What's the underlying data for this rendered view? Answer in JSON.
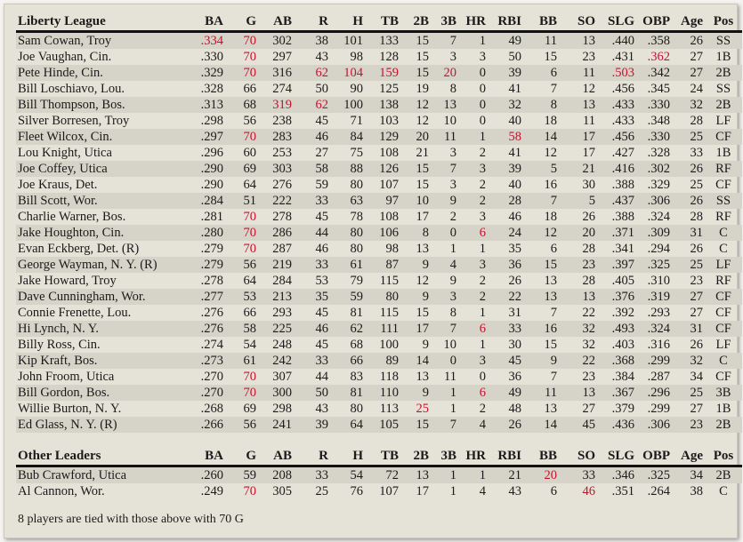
{
  "columns": [
    "BA",
    "G",
    "AB",
    "R",
    "H",
    "TB",
    "2B",
    "3B",
    "HR",
    "RBI",
    "BB",
    "SO",
    "SLG",
    "OBP",
    "Age",
    "Pos"
  ],
  "highlight_color": "#c8102e",
  "liberty_league": {
    "title": "Liberty League",
    "rows": [
      {
        "cells": [
          "Sam Cowan, Troy",
          ".334",
          "70",
          "302",
          "38",
          "101",
          "133",
          "15",
          "7",
          "1",
          "49",
          "11",
          "13",
          ".440",
          ".358",
          "26",
          "SS"
        ],
        "red": [
          1,
          2
        ]
      },
      {
        "cells": [
          "Joe Vaughan, Cin.",
          ".330",
          "70",
          "297",
          "43",
          "98",
          "128",
          "15",
          "3",
          "3",
          "50",
          "15",
          "23",
          ".431",
          ".362",
          "27",
          "1B"
        ],
        "red": [
          2,
          14
        ]
      },
      {
        "cells": [
          "Pete Hinde, Cin.",
          ".329",
          "70",
          "316",
          "62",
          "104",
          "159",
          "15",
          "20",
          "0",
          "39",
          "6",
          "11",
          ".503",
          ".342",
          "27",
          "2B"
        ],
        "red": [
          2,
          4,
          5,
          6,
          8,
          13
        ]
      },
      {
        "cells": [
          "Bill Loschiavo, Lou.",
          ".328",
          "66",
          "274",
          "50",
          "90",
          "125",
          "19",
          "8",
          "0",
          "41",
          "7",
          "12",
          ".456",
          ".345",
          "24",
          "SS"
        ],
        "red": []
      },
      {
        "cells": [
          "Bill Thompson, Bos.",
          ".313",
          "68",
          "319",
          "62",
          "100",
          "138",
          "12",
          "13",
          "0",
          "32",
          "8",
          "13",
          ".433",
          ".330",
          "32",
          "2B"
        ],
        "red": [
          3,
          4
        ]
      },
      {
        "cells": [
          "Silver Borresen, Troy",
          ".298",
          "56",
          "238",
          "45",
          "71",
          "103",
          "12",
          "10",
          "0",
          "40",
          "18",
          "11",
          ".433",
          ".348",
          "28",
          "LF"
        ],
        "red": []
      },
      {
        "cells": [
          "Fleet Wilcox, Cin.",
          ".297",
          "70",
          "283",
          "46",
          "84",
          "129",
          "20",
          "11",
          "1",
          "58",
          "14",
          "17",
          ".456",
          ".330",
          "25",
          "CF"
        ],
        "red": [
          2,
          10
        ]
      },
      {
        "cells": [
          "Lou Knight, Utica",
          ".296",
          "60",
          "253",
          "27",
          "75",
          "108",
          "21",
          "3",
          "2",
          "41",
          "12",
          "17",
          ".427",
          ".328",
          "33",
          "1B"
        ],
        "red": []
      },
      {
        "cells": [
          "Joe Coffey, Utica",
          ".290",
          "69",
          "303",
          "58",
          "88",
          "126",
          "15",
          "7",
          "3",
          "39",
          "5",
          "21",
          ".416",
          ".302",
          "26",
          "RF"
        ],
        "red": []
      },
      {
        "cells": [
          "Joe Kraus, Det.",
          ".290",
          "64",
          "276",
          "59",
          "80",
          "107",
          "15",
          "3",
          "2",
          "40",
          "16",
          "30",
          ".388",
          ".329",
          "25",
          "CF"
        ],
        "red": []
      },
      {
        "cells": [
          "Bill Scott, Wor.",
          ".284",
          "51",
          "222",
          "33",
          "63",
          "97",
          "10",
          "9",
          "2",
          "28",
          "7",
          "5",
          ".437",
          ".306",
          "26",
          "SS"
        ],
        "red": []
      },
      {
        "cells": [
          "Charlie Warner, Bos.",
          ".281",
          "70",
          "278",
          "45",
          "78",
          "108",
          "17",
          "2",
          "3",
          "46",
          "18",
          "26",
          ".388",
          ".324",
          "28",
          "RF"
        ],
        "red": [
          2
        ]
      },
      {
        "cells": [
          "Jake Houghton, Cin.",
          ".280",
          "70",
          "286",
          "44",
          "80",
          "106",
          "8",
          "0",
          "6",
          "24",
          "12",
          "20",
          ".371",
          ".309",
          "31",
          "C"
        ],
        "red": [
          2,
          9
        ]
      },
      {
        "cells": [
          "Evan Eckberg, Det.  (R)",
          ".279",
          "70",
          "287",
          "46",
          "80",
          "98",
          "13",
          "1",
          "1",
          "35",
          "6",
          "28",
          ".341",
          ".294",
          "26",
          "C"
        ],
        "red": [
          2
        ]
      },
      {
        "cells": [
          "George Wayman, N. Y.  (R)",
          ".279",
          "56",
          "219",
          "33",
          "61",
          "87",
          "9",
          "4",
          "3",
          "36",
          "15",
          "23",
          ".397",
          ".325",
          "25",
          "LF"
        ],
        "red": []
      },
      {
        "cells": [
          "Jake Howard, Troy",
          ".278",
          "64",
          "284",
          "53",
          "79",
          "115",
          "12",
          "9",
          "2",
          "26",
          "13",
          "28",
          ".405",
          ".310",
          "23",
          "RF"
        ],
        "red": []
      },
      {
        "cells": [
          "Dave Cunningham, Wor.",
          ".277",
          "53",
          "213",
          "35",
          "59",
          "80",
          "9",
          "3",
          "2",
          "22",
          "13",
          "13",
          ".376",
          ".319",
          "27",
          "CF"
        ],
        "red": []
      },
      {
        "cells": [
          "Connie Frenette, Lou.",
          ".276",
          "66",
          "293",
          "45",
          "81",
          "115",
          "15",
          "8",
          "1",
          "31",
          "7",
          "22",
          ".392",
          ".293",
          "27",
          "CF"
        ],
        "red": []
      },
      {
        "cells": [
          "Hi Lynch, N. Y.",
          ".276",
          "58",
          "225",
          "46",
          "62",
          "111",
          "17",
          "7",
          "6",
          "33",
          "16",
          "32",
          ".493",
          ".324",
          "31",
          "CF"
        ],
        "red": [
          9
        ]
      },
      {
        "cells": [
          "Billy Ross, Cin.",
          ".274",
          "54",
          "248",
          "45",
          "68",
          "100",
          "9",
          "10",
          "1",
          "30",
          "15",
          "32",
          ".403",
          ".316",
          "26",
          "LF"
        ],
        "red": []
      },
      {
        "cells": [
          "Kip Kraft, Bos.",
          ".273",
          "61",
          "242",
          "33",
          "66",
          "89",
          "14",
          "0",
          "3",
          "45",
          "9",
          "22",
          ".368",
          ".299",
          "32",
          "C"
        ],
        "red": []
      },
      {
        "cells": [
          "John Froom, Utica",
          ".270",
          "70",
          "307",
          "44",
          "83",
          "118",
          "13",
          "11",
          "0",
          "36",
          "7",
          "23",
          ".384",
          ".287",
          "34",
          "CF"
        ],
        "red": [
          2
        ]
      },
      {
        "cells": [
          "Bill Gordon, Bos.",
          ".270",
          "70",
          "300",
          "50",
          "81",
          "110",
          "9",
          "1",
          "6",
          "49",
          "11",
          "13",
          ".367",
          ".296",
          "25",
          "3B"
        ],
        "red": [
          2,
          9
        ]
      },
      {
        "cells": [
          "Willie Burton, N. Y.",
          ".268",
          "69",
          "298",
          "43",
          "80",
          "113",
          "25",
          "1",
          "2",
          "48",
          "13",
          "27",
          ".379",
          ".299",
          "27",
          "1B"
        ],
        "red": [
          7
        ]
      },
      {
        "cells": [
          "Ed Glass, N. Y.  (R)",
          ".266",
          "56",
          "241",
          "39",
          "64",
          "105",
          "15",
          "7",
          "4",
          "26",
          "14",
          "45",
          ".436",
          ".306",
          "23",
          "2B"
        ],
        "red": []
      }
    ]
  },
  "other_leaders": {
    "title": "Other Leaders",
    "rows": [
      {
        "cells": [
          "Bub Crawford, Utica",
          ".260",
          "59",
          "208",
          "33",
          "54",
          "72",
          "13",
          "1",
          "1",
          "21",
          "20",
          "33",
          ".346",
          ".325",
          "34",
          "2B"
        ],
        "red": [
          11
        ]
      },
      {
        "cells": [
          "Al Cannon, Wor.",
          ".249",
          "70",
          "305",
          "25",
          "76",
          "107",
          "17",
          "1",
          "4",
          "43",
          "6",
          "46",
          ".351",
          ".264",
          "38",
          "C"
        ],
        "red": [
          2,
          12
        ]
      }
    ]
  },
  "footer_note": "8 players are tied with those above with 70 G"
}
